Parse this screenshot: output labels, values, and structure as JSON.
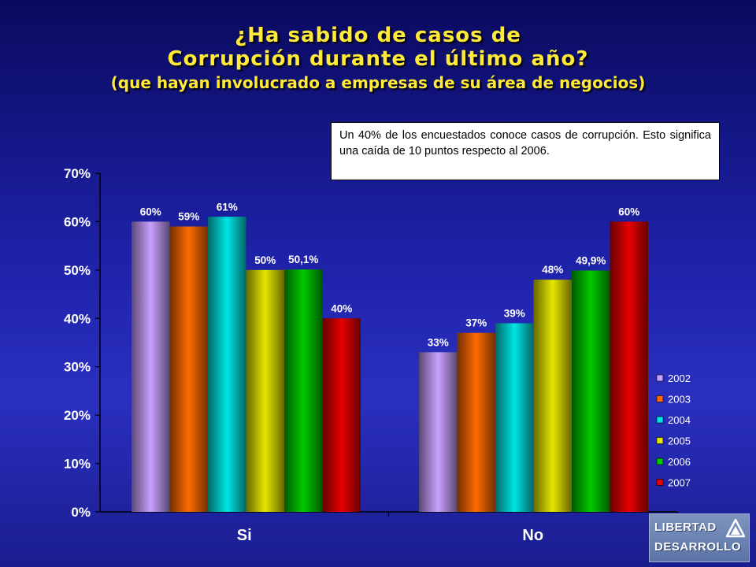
{
  "title": {
    "line1": "¿Ha sabido de casos de",
    "line2": "Corrupción durante el último año?",
    "line3": "(que hayan involucrado a empresas de su área de negocios)"
  },
  "note": "Un 40% de los encuestados conoce casos de corrupción. Esto significa una caída de 10 puntos respecto al 2006.",
  "logo": {
    "line1": "LIBERTAD",
    "line2": "DESARROLLO"
  },
  "colors": {
    "text_yellow": "#ffea3a",
    "background": "#1e22a8",
    "series": [
      "#c9a0ff",
      "#ff6a00",
      "#00e5e5",
      "#e6e600",
      "#00c800",
      "#e60000"
    ]
  },
  "chart_data": {
    "type": "bar",
    "categories": [
      "Si",
      "No"
    ],
    "series": [
      {
        "name": "2002",
        "values": [
          60,
          33
        ],
        "labels": [
          "60%",
          "33%"
        ]
      },
      {
        "name": "2003",
        "values": [
          59,
          37
        ],
        "labels": [
          "59%",
          "37%"
        ]
      },
      {
        "name": "2004",
        "values": [
          61,
          39
        ],
        "labels": [
          "61%",
          "39%"
        ]
      },
      {
        "name": "2005",
        "values": [
          50,
          48
        ],
        "labels": [
          "50%",
          "48%"
        ]
      },
      {
        "name": "2006",
        "values": [
          50.1,
          49.9
        ],
        "labels": [
          "50,1%",
          "49,9%"
        ]
      },
      {
        "name": "2007",
        "values": [
          40,
          60
        ],
        "labels": [
          "40%",
          "60%"
        ]
      }
    ],
    "ylim": [
      0,
      70
    ],
    "yticks": [
      "0%",
      "10%",
      "20%",
      "30%",
      "40%",
      "50%",
      "60%",
      "70%"
    ],
    "legend": "right",
    "grid": false
  }
}
